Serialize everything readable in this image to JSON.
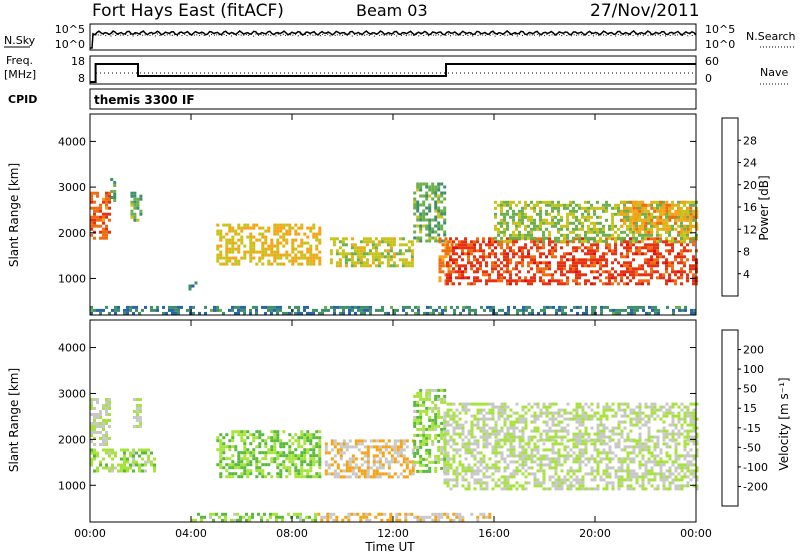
{
  "header": {
    "station": "Fort Hays East (fitACF)",
    "beam": "Beam 03",
    "date": "27/Nov/2011"
  },
  "noise_panel": {
    "left_label": "N.Sky",
    "right_label": "N.Search",
    "left_ticks": [
      "10^5",
      "10^0"
    ],
    "right_ticks": [
      "10^5",
      "10^0"
    ]
  },
  "freq_panel": {
    "left_label_top": "Freq.",
    "left_label_unit": "[MHz]",
    "right_label": "Nave",
    "left_ticks": [
      "18",
      "8"
    ],
    "right_ticks": [
      "60",
      "0"
    ],
    "freq_steps_hours": [
      [
        0,
        0.22
      ],
      [
        0.22,
        1.9
      ],
      [
        1.9,
        14.1
      ],
      [
        14.1,
        24
      ]
    ],
    "freq_step_levels": [
      0,
      0.75,
      0.25,
      0.75
    ]
  },
  "cpid": {
    "label": "CPID",
    "value": "themis 3300 IF"
  },
  "axes": {
    "ylabel": "Slant Range [km]",
    "xlabel": "Time UT",
    "xticks": [
      "00:00",
      "04:00",
      "08:00",
      "12:00",
      "16:00",
      "20:00",
      "00:00"
    ],
    "yticks": [
      "1000",
      "2000",
      "3000",
      "4000"
    ]
  },
  "colors": {
    "power": [
      "#1f1fe0",
      "#2a63a8",
      "#3f8f6a",
      "#6ab04c",
      "#c9c21a",
      "#f6a315",
      "#f06c10",
      "#e63212",
      "#e01010"
    ],
    "velocity": [
      "#1f1fe0",
      "#2a63a8",
      "#3f8f6a",
      "#59b93a",
      "#a7e33d",
      "#c8c8c8",
      "#f6a315",
      "#f06c10",
      "#e63212",
      "#e01010"
    ]
  },
  "power_colorbar": {
    "title": "Power [dB]",
    "ticks": [
      "4",
      "8",
      "12",
      "16",
      "20",
      "24",
      "28"
    ]
  },
  "velocity_colorbar": {
    "title": "Velocity [m s⁻¹]",
    "ticks": [
      "200",
      "100",
      "50",
      "15",
      "-15",
      "-50",
      "-100",
      "-200"
    ]
  },
  "chart_data": [
    {
      "type": "heatmap",
      "title": "Power",
      "xlabel": "Time UT",
      "ylabel": "Slant Range [km]",
      "xlim_hours": [
        0,
        24
      ],
      "ylim_km": [
        200,
        4600
      ],
      "colorbar": "Power [dB]",
      "colorbar_range": [
        0,
        32
      ],
      "regions": [
        {
          "t": [
            0.0,
            0.8
          ],
          "r": [
            1900,
            2900
          ],
          "value": 24
        },
        {
          "t": [
            0.8,
            1.0
          ],
          "r": [
            2700,
            3200
          ],
          "value": 10
        },
        {
          "t": [
            1.6,
            2.0
          ],
          "r": [
            2300,
            2900
          ],
          "value": 12
        },
        {
          "t": [
            3.9,
            4.2
          ],
          "r": [
            750,
            1000
          ],
          "value": 8
        },
        {
          "t": [
            5.0,
            9.1
          ],
          "r": [
            1300,
            2200
          ],
          "value": 18
        },
        {
          "t": [
            9.5,
            12.8
          ],
          "r": [
            1300,
            1900
          ],
          "value": 16
        },
        {
          "t": [
            12.8,
            14.1
          ],
          "r": [
            1800,
            3100
          ],
          "value": 12
        },
        {
          "t": [
            13.8,
            14.3
          ],
          "r": [
            900,
            1900
          ],
          "value": 22
        },
        {
          "t": [
            14.1,
            24.0
          ],
          "r": [
            900,
            1900
          ],
          "value": 26
        },
        {
          "t": [
            16.0,
            24.0
          ],
          "r": [
            1800,
            2700
          ],
          "value": 14
        },
        {
          "t": [
            21.0,
            24.0
          ],
          "r": [
            2000,
            2700
          ],
          "value": 20
        },
        {
          "t": [
            0.0,
            24.0
          ],
          "r": [
            250,
            400
          ],
          "value": 8
        }
      ]
    },
    {
      "type": "heatmap",
      "title": "Velocity",
      "xlabel": "Time UT",
      "ylabel": "Slant Range [km]",
      "xlim_hours": [
        0,
        24
      ],
      "ylim_km": [
        200,
        4600
      ],
      "colorbar": "Velocity [m s⁻¹]",
      "colorbar_range": [
        -200,
        200
      ],
      "regions": [
        {
          "t": [
            0.0,
            0.8
          ],
          "r": [
            1900,
            2900
          ],
          "value": 0
        },
        {
          "t": [
            1.7,
            2.0
          ],
          "r": [
            2300,
            2900
          ],
          "value": 0
        },
        {
          "t": [
            0.0,
            2.5
          ],
          "r": [
            1300,
            1800
          ],
          "value": 30
        },
        {
          "t": [
            5.0,
            9.1
          ],
          "r": [
            1200,
            2200
          ],
          "value": 40
        },
        {
          "t": [
            9.3,
            12.8
          ],
          "r": [
            1200,
            2000
          ],
          "value": -40
        },
        {
          "t": [
            12.8,
            14.0
          ],
          "r": [
            1300,
            3100
          ],
          "value": 30
        },
        {
          "t": [
            14.0,
            24.0
          ],
          "r": [
            900,
            2000
          ],
          "value": 0
        },
        {
          "t": [
            14.0,
            24.0
          ],
          "r": [
            2000,
            2800
          ],
          "value": 0
        },
        {
          "t": [
            4.0,
            9.0
          ],
          "r": [
            250,
            400
          ],
          "value": 30
        },
        {
          "t": [
            9.0,
            16.0
          ],
          "r": [
            250,
            400
          ],
          "value": -40
        }
      ]
    }
  ]
}
